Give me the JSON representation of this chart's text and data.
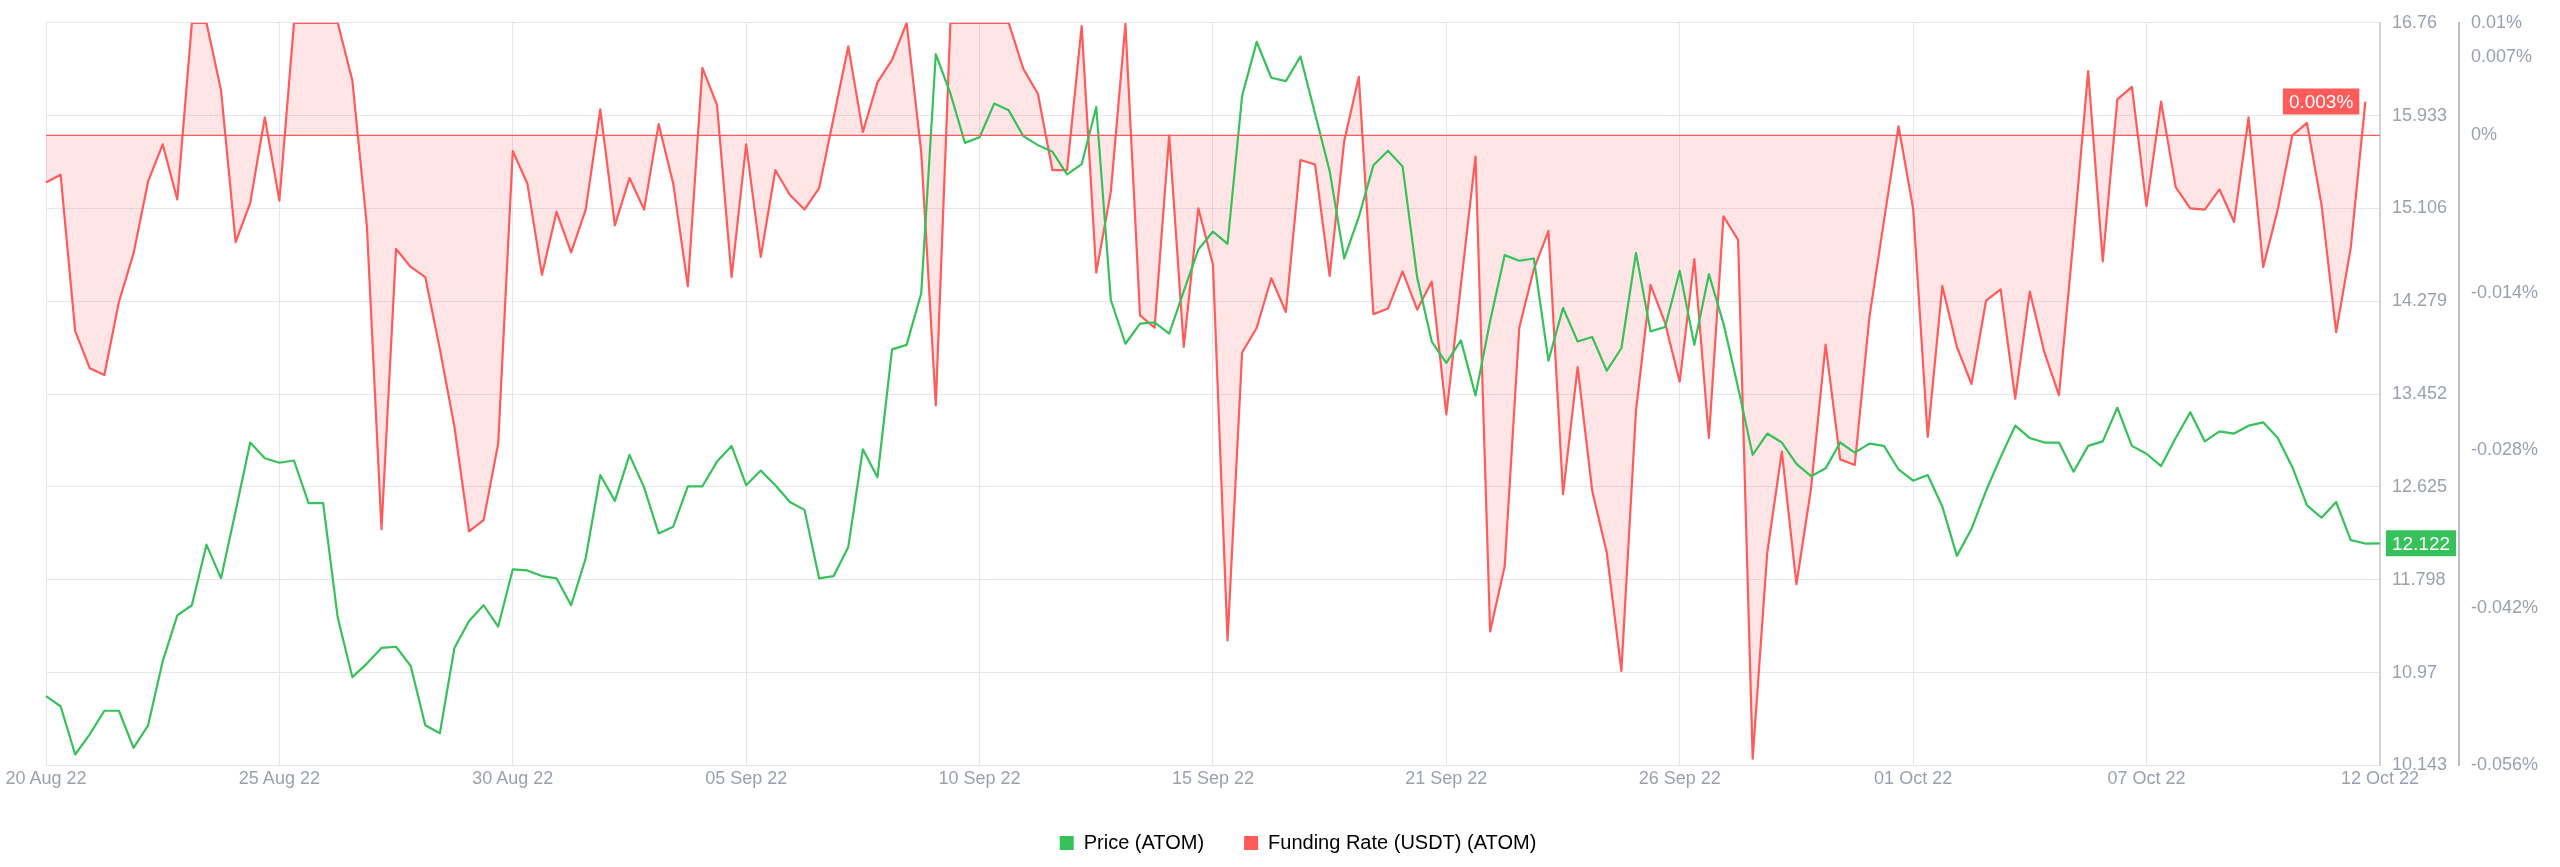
{
  "chart_data": {
    "type": "line",
    "categories": [
      "20 Aug 22",
      null,
      null,
      null,
      null,
      null,
      null,
      null,
      null,
      null,
      null,
      null,
      null,
      null,
      null,
      null,
      "25 Aug 22",
      null,
      null,
      null,
      null,
      null,
      null,
      null,
      null,
      null,
      null,
      null,
      null,
      null,
      null,
      null,
      "30 Aug 22",
      null,
      null,
      null,
      null,
      null,
      null,
      null,
      null,
      null,
      null,
      null,
      null,
      null,
      null,
      null,
      "05 Sep 22",
      null,
      null,
      null,
      null,
      null,
      null,
      null,
      null,
      null,
      null,
      null,
      null,
      null,
      null,
      null,
      "10 Sep 22",
      null,
      null,
      null,
      null,
      null,
      null,
      null,
      null,
      null,
      null,
      null,
      null,
      null,
      null,
      null,
      "15 Sep 22",
      null,
      null,
      null,
      null,
      null,
      null,
      null,
      null,
      null,
      null,
      null,
      null,
      null,
      null,
      null,
      "21 Sep 22",
      null,
      null,
      null,
      null,
      null,
      null,
      null,
      null,
      null,
      null,
      null,
      null,
      null,
      null,
      null,
      "26 Sep 22",
      null,
      null,
      null,
      null,
      null,
      null,
      null,
      null,
      null,
      null,
      null,
      null,
      null,
      null,
      null,
      "01 Oct 22",
      null,
      null,
      null,
      null,
      null,
      null,
      null,
      null,
      null,
      null,
      null,
      null,
      null,
      null,
      null,
      "07 Oct 22",
      null,
      null,
      null,
      null,
      null,
      null,
      null,
      null,
      null,
      null,
      null,
      null,
      null,
      null,
      null,
      "12 Oct 22"
    ],
    "series": [
      {
        "name": "Price (ATOM)",
        "type": "line",
        "axis": "y",
        "color": "#37c15a",
        "values": [
          10.76,
          10.67,
          10.24,
          10.42,
          10.63,
          10.63,
          10.3,
          10.5,
          11.07,
          11.48,
          11.57,
          12.11,
          11.81,
          12.41,
          13.02,
          12.88,
          12.84,
          12.86,
          12.48,
          12.48,
          11.46,
          10.93,
          11.05,
          11.19,
          11.2,
          11.03,
          10.5,
          10.43,
          11.19,
          11.43,
          11.57,
          11.38,
          11.89,
          11.88,
          11.83,
          11.81,
          11.57,
          11.99,
          12.73,
          12.5,
          12.91,
          12.62,
          12.21,
          12.27,
          12.63,
          12.63,
          12.85,
          12.99,
          12.64,
          12.77,
          12.64,
          12.49,
          12.42,
          11.81,
          11.83,
          12.09,
          12.96,
          12.71,
          13.85,
          13.89,
          14.35,
          16.48,
          16.13,
          15.69,
          15.74,
          16.04,
          15.98,
          15.75,
          15.67,
          15.61,
          15.41,
          15.5,
          16.01,
          14.29,
          13.9,
          14.08,
          14.09,
          13.99,
          14.37,
          14.74,
          14.9,
          14.79,
          16.11,
          16.59,
          16.27,
          16.24,
          16.46,
          15.95,
          15.44,
          14.66,
          15.03,
          15.49,
          15.62,
          15.48,
          14.49,
          13.92,
          13.73,
          13.93,
          13.44,
          14.1,
          14.69,
          14.64,
          14.66,
          13.75,
          14.22,
          13.92,
          13.96,
          13.66,
          13.86,
          14.71,
          14.01,
          14.05,
          14.55,
          13.89,
          14.52,
          14.08,
          13.51,
          12.91,
          13.1,
          13.02,
          12.83,
          12.72,
          12.79,
          13.02,
          12.93,
          13.01,
          12.99,
          12.78,
          12.68,
          12.73,
          12.45,
          12.01,
          12.25,
          12.59,
          12.89,
          13.17,
          13.06,
          13.02,
          13.02,
          12.76,
          12.99,
          13.03,
          13.33,
          12.99,
          12.92,
          12.81,
          13.06,
          13.29,
          13.03,
          13.12,
          13.1,
          13.17,
          13.2,
          13.06,
          12.8,
          12.46,
          12.35,
          12.49,
          12.15,
          12.12,
          12.122
        ],
        "value_labels": [
          null,
          null,
          null,
          null,
          null,
          null,
          null,
          null,
          null,
          null,
          null,
          null,
          null,
          null,
          null,
          null,
          null,
          null,
          null,
          null,
          null,
          null,
          null,
          null,
          null,
          null,
          null,
          null,
          null,
          null,
          null,
          null,
          null,
          null,
          null,
          null,
          null,
          null,
          null,
          null,
          null,
          null,
          null,
          null,
          null,
          null,
          null,
          null,
          null,
          null,
          null,
          null,
          null,
          null,
          null,
          null,
          null,
          null,
          null,
          null,
          null,
          null,
          null,
          null,
          null,
          null,
          null,
          null,
          null,
          null,
          null,
          null,
          null,
          null,
          null,
          null,
          null,
          null,
          null,
          null,
          null,
          null,
          null,
          null,
          null,
          null,
          null,
          null,
          null,
          null,
          null,
          null,
          null,
          null,
          null,
          null,
          null,
          null,
          null,
          null,
          null,
          null,
          null,
          null,
          null,
          null,
          null,
          null,
          null,
          null,
          null,
          null,
          null,
          null,
          null,
          null,
          null,
          null,
          null,
          null,
          null,
          null,
          null,
          null,
          null,
          null,
          null,
          null,
          null,
          null,
          null,
          null,
          null,
          null,
          null,
          null,
          null,
          null,
          null,
          null,
          null,
          null,
          null,
          null,
          null,
          null,
          null,
          null,
          null,
          null,
          null,
          null,
          null,
          null,
          null,
          null,
          null,
          null,
          null,
          null,
          "12.122"
        ]
      },
      {
        "name": "Funding Rate (USDT) (ATOM)",
        "type": "area",
        "axis": "y2",
        "color": "#ff5b5b",
        "values": [
          -0.0042,
          -0.0035,
          -0.0174,
          -0.0207,
          -0.0213,
          -0.0148,
          -0.0105,
          -0.0041,
          -0.0008,
          -0.0057,
          0.01,
          0.01,
          0.004,
          -0.0095,
          -0.006,
          0.0016,
          -0.0058,
          0.01,
          0.01,
          0.01,
          0.01,
          0.0049,
          -0.0081,
          -0.035,
          -0.0101,
          -0.0117,
          -0.0126,
          -0.019,
          -0.0259,
          -0.0352,
          -0.0342,
          -0.0274,
          -0.0014,
          -0.0043,
          -0.0124,
          -0.0068,
          -0.0104,
          -0.0066,
          0.0023,
          -0.008,
          -0.0038,
          -0.0066,
          0.001,
          -0.0043,
          -0.0134,
          0.006,
          0.0027,
          -0.0126,
          -0.0008,
          -0.0108,
          -0.0031,
          -0.0053,
          -0.0066,
          -0.0047,
          0.0016,
          0.0079,
          0.0003,
          0.0047,
          0.0067,
          0.01,
          -0.0015,
          -0.024,
          0.01,
          0.01,
          0.01,
          0.01,
          0.01,
          0.0059,
          0.0037,
          -0.0031,
          -0.0031,
          0.0097,
          -0.0122,
          -0.005,
          0.0099,
          -0.016,
          -0.0171,
          0.0,
          -0.0188,
          -0.0065,
          -0.0115,
          -0.0449,
          -0.0193,
          -0.0171,
          -0.0127,
          -0.0157,
          -0.0022,
          -0.0026,
          -0.0125,
          -0.0005,
          0.0052,
          -0.0159,
          -0.0154,
          -0.0121,
          -0.0155,
          -0.013,
          -0.0248,
          -0.0133,
          -0.0019,
          -0.0441,
          -0.0383,
          -0.0171,
          -0.0119,
          -0.0085,
          -0.0319,
          -0.0206,
          -0.0316,
          -0.0371,
          -0.0476,
          -0.0245,
          -0.0133,
          -0.0167,
          -0.0219,
          -0.011,
          -0.0269,
          -0.0072,
          -0.0093,
          -0.0554,
          -0.0371,
          -0.0281,
          -0.0399,
          -0.0314,
          -0.0186,
          -0.0288,
          -0.0293,
          -0.0162,
          -0.0076,
          0.0008,
          -0.0065,
          -0.0268,
          -0.0134,
          -0.0188,
          -0.0221,
          -0.0147,
          -0.0137,
          -0.0234,
          -0.0139,
          -0.0193,
          -0.0231,
          -0.0091,
          0.0057,
          -0.0112,
          0.0032,
          0.0043,
          -0.0063,
          0.003,
          -0.0046,
          -0.0065,
          -0.0066,
          -0.0048,
          -0.0077,
          0.0016,
          -0.0117,
          -0.0066,
          0.0,
          0.0011,
          -0.0062,
          -0.0175,
          -0.01,
          0.003,
          null
        ],
        "value_labels": [
          null,
          null,
          null,
          null,
          null,
          null,
          null,
          null,
          null,
          null,
          null,
          null,
          null,
          null,
          null,
          null,
          null,
          null,
          null,
          null,
          null,
          null,
          null,
          null,
          null,
          null,
          null,
          null,
          null,
          null,
          null,
          null,
          null,
          null,
          null,
          null,
          null,
          null,
          null,
          null,
          null,
          null,
          null,
          null,
          null,
          null,
          null,
          null,
          null,
          null,
          null,
          null,
          null,
          null,
          null,
          null,
          null,
          null,
          null,
          null,
          null,
          null,
          null,
          null,
          null,
          null,
          null,
          null,
          null,
          null,
          null,
          null,
          null,
          null,
          null,
          null,
          null,
          null,
          null,
          null,
          null,
          null,
          null,
          null,
          null,
          null,
          null,
          null,
          null,
          null,
          null,
          null,
          null,
          null,
          null,
          null,
          null,
          null,
          null,
          null,
          null,
          null,
          null,
          null,
          null,
          null,
          null,
          null,
          null,
          null,
          null,
          null,
          null,
          null,
          null,
          null,
          null,
          null,
          null,
          null,
          null,
          null,
          null,
          null,
          null,
          null,
          null,
          null,
          null,
          null,
          null,
          null,
          null,
          null,
          null,
          null,
          null,
          null,
          null,
          null,
          null,
          null,
          null,
          null,
          null,
          null,
          null,
          null,
          null,
          null,
          null,
          null,
          null,
          null,
          null,
          null,
          null,
          null,
          null,
          "0.003%",
          null
        ]
      }
    ],
    "ylim": [
      10.143,
      16.76
    ],
    "yticks": [
      10.143,
      10.97,
      11.798,
      12.625,
      13.452,
      14.279,
      15.106,
      15.933,
      16.76
    ],
    "y2lim": [
      -0.056,
      0.01
    ],
    "y2ticks": [
      {
        "value": -0.056,
        "label": "-0.056%"
      },
      {
        "value": -0.042,
        "label": "-0.042%"
      },
      {
        "value": -0.028,
        "label": "-0.028%"
      },
      {
        "value": -0.014,
        "label": "-0.014%"
      },
      {
        "value": 0,
        "label": "0%"
      },
      {
        "value": 0.007,
        "label": "0.007%"
      },
      {
        "value": 0.01,
        "label": "0.01%"
      }
    ],
    "ref_lines": [
      {
        "axis": "y2",
        "value": 0,
        "color": "#ff5b5b"
      }
    ],
    "grid": true,
    "legend": "bottom",
    "marker": "none",
    "line_style": "solid"
  }
}
